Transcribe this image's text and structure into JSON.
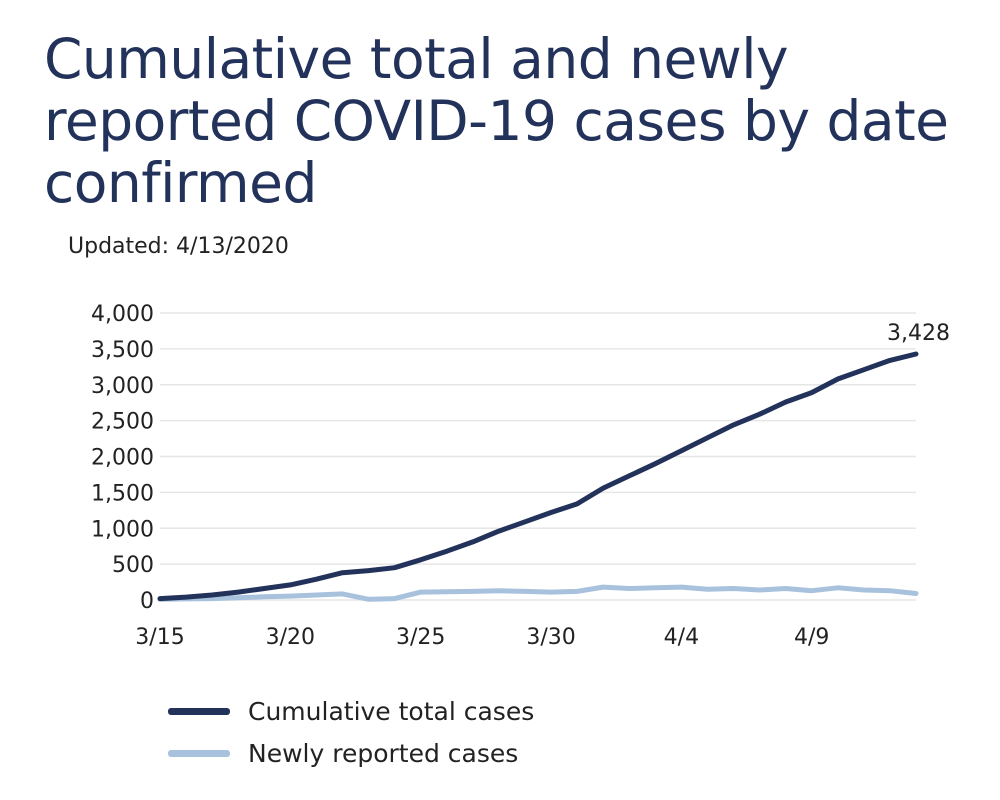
{
  "chart_data": {
    "type": "line",
    "title": "Cumulative total and newly reported COVID-19 cases by date confirmed",
    "subtitle": "Updated: 4/13/2020",
    "x": [
      "3/15",
      "3/16",
      "3/17",
      "3/18",
      "3/19",
      "3/20",
      "3/21",
      "3/22",
      "3/23",
      "3/24",
      "3/25",
      "3/26",
      "3/27",
      "3/28",
      "3/29",
      "3/30",
      "3/31",
      "4/1",
      "4/2",
      "4/3",
      "4/4",
      "4/5",
      "4/6",
      "4/7",
      "4/8",
      "4/9",
      "4/10",
      "4/11",
      "4/12",
      "4/13"
    ],
    "x_tick_labels": [
      "3/15",
      "3/20",
      "3/25",
      "3/30",
      "4/4",
      "4/9"
    ],
    "y_tick_labels": [
      "0",
      "500",
      "1,000",
      "1,500",
      "2,000",
      "2,500",
      "3,000",
      "3,500",
      "4,000"
    ],
    "ylim": [
      0,
      4000
    ],
    "grid": true,
    "legend_position": "bottom",
    "series": [
      {
        "name": "Cumulative total cases",
        "color": "#22325a",
        "values": [
          20,
          40,
          70,
          110,
          160,
          210,
          290,
          380,
          410,
          450,
          560,
          680,
          810,
          960,
          1090,
          1220,
          1340,
          1560,
          1730,
          1900,
          2080,
          2260,
          2440,
          2590,
          2760,
          2890,
          3080,
          3210,
          3340,
          3428
        ]
      },
      {
        "name": "Newly reported cases",
        "color": "#a8c1dd",
        "values": [
          10,
          15,
          20,
          30,
          45,
          55,
          70,
          85,
          10,
          20,
          110,
          115,
          120,
          130,
          120,
          110,
          120,
          180,
          160,
          170,
          180,
          150,
          160,
          140,
          160,
          130,
          170,
          140,
          130,
          90
        ]
      }
    ],
    "annotations": [
      {
        "text": "3,428",
        "x": "4/13",
        "y": 3428
      }
    ]
  }
}
